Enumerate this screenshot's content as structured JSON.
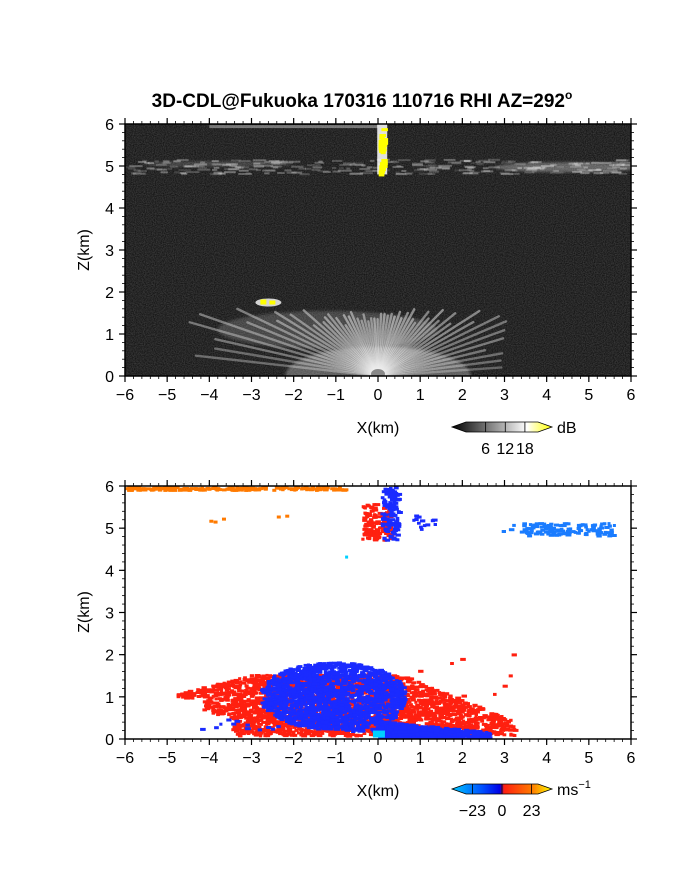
{
  "figure": {
    "title": "3D-CDL@Fukuoka 170316 110716 RHI AZ=292",
    "title_superscript": "o"
  },
  "chart_data": [
    {
      "type": "heatmap",
      "quantity": "backscatter intensity",
      "xlabel": "X(km)",
      "ylabel": "Z(km)",
      "xlim": [
        -6,
        6
      ],
      "ylim": [
        0,
        6
      ],
      "xticks": [
        "−6",
        "−5",
        "−4",
        "−3",
        "−2",
        "−1",
        "0",
        "1",
        "2",
        "3",
        "4",
        "5",
        "6"
      ],
      "yticks": [
        "0",
        "1",
        "2",
        "3",
        "4",
        "5",
        "6"
      ],
      "colorbar": {
        "unit": "dB",
        "ticks": [
          "6",
          "12",
          "18"
        ],
        "tick_values": [
          6,
          12,
          18
        ],
        "range": [
          0,
          22
        ],
        "colors": [
          "#000000",
          "#ffffff",
          "#ffff00"
        ]
      },
      "features": [
        {
          "name": "boundary layer fan",
          "x_range": [
            -5,
            3.2
          ],
          "z_top": 1.6,
          "origin": [
            0,
            0
          ]
        },
        {
          "name": "cloud layer",
          "x_range": [
            -6,
            6
          ],
          "z": 5.0
        },
        {
          "name": "upper layer",
          "x_range": [
            -4,
            0
          ],
          "z": 5.95
        },
        {
          "name": "strong return",
          "x": 0.1,
          "z_range": [
            4.8,
            6.0
          ]
        },
        {
          "name": "strong return",
          "x": -2.6,
          "z": 1.75
        }
      ]
    },
    {
      "type": "heatmap",
      "quantity": "radial velocity",
      "xlabel": "X(km)",
      "ylabel": "Z(km)",
      "xlim": [
        -6,
        6
      ],
      "ylim": [
        0,
        6
      ],
      "xticks": [
        "−6",
        "−5",
        "−4",
        "−3",
        "−2",
        "−1",
        "0",
        "1",
        "2",
        "3",
        "4",
        "5",
        "6"
      ],
      "yticks": [
        "0",
        "1",
        "2",
        "3",
        "4",
        "5",
        "6"
      ],
      "colorbar": {
        "unit": "ms",
        "unit_superscript": "−1",
        "ticks": [
          "−23",
          "0",
          "23"
        ],
        "tick_values": [
          -23,
          0,
          23
        ],
        "range": [
          -28,
          28
        ],
        "colors": [
          "#00c8ff",
          "#0050ff",
          "#0000e6",
          "#ff2010",
          "#ff7a00",
          "#ffff00"
        ]
      },
      "features": [
        {
          "name": "positive velocity layer",
          "x_range": [
            -4.8,
            3.2
          ],
          "z_range": [
            0,
            1.6
          ]
        },
        {
          "name": "negative velocity region",
          "x_range": [
            -2.8,
            0.6
          ],
          "z_range": [
            0.2,
            1.85
          ]
        },
        {
          "name": "negative velocity near ground",
          "x_range": [
            0,
            2.6
          ],
          "z_range": [
            0,
            0.45
          ]
        },
        {
          "name": "positive velocity cloud",
          "x_range": [
            -0.4,
            0.3
          ],
          "z_range": [
            4.75,
            5.6
          ]
        },
        {
          "name": "negative velocity cloud",
          "x_range": [
            0,
            0.45
          ],
          "z_range": [
            4.75,
            6
          ]
        },
        {
          "name": "negative velocity layer",
          "x_range": [
            2.9,
            5.6
          ],
          "z_range": [
            4.85,
            5.15
          ]
        },
        {
          "name": "upper positive layer",
          "x_range": [
            -6,
            -0.8
          ],
          "z_range": [
            5.9,
            6
          ]
        }
      ]
    }
  ]
}
